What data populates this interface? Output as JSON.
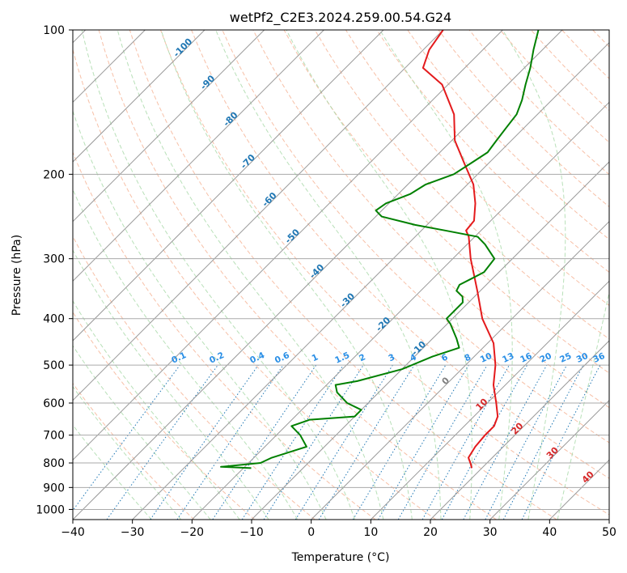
{
  "chart_data": {
    "type": "line",
    "subtype": "skew-t log-p",
    "title": "wetPf2_C2E3.2024.259.00.54.G24",
    "xlabel": "Temperature (°C)",
    "ylabel": "Pressure (hPa)",
    "xlim": [
      -40,
      50
    ],
    "ylim": [
      1050,
      100
    ],
    "yscale": "log",
    "x_ticks": [
      -40,
      -30,
      -20,
      -10,
      0,
      10,
      20,
      30,
      40,
      50
    ],
    "y_ticks": [
      100,
      200,
      300,
      400,
      500,
      600,
      700,
      800,
      900,
      1000
    ],
    "grid": true,
    "series": [
      {
        "color": "#e41a1c",
        "points": [
          {
            "p": 820,
            "t": 18.3
          },
          {
            "p": 805,
            "t": 17.5
          },
          {
            "p": 780,
            "t": 16.0
          },
          {
            "p": 740,
            "t": 15.3
          },
          {
            "p": 700,
            "t": 15.0
          },
          {
            "p": 670,
            "t": 15.0
          },
          {
            "p": 640,
            "t": 14.0
          },
          {
            "p": 600,
            "t": 11.5
          },
          {
            "p": 550,
            "t": 8.0
          },
          {
            "p": 500,
            "t": 5.0
          },
          {
            "p": 450,
            "t": 1.0
          },
          {
            "p": 400,
            "t": -5.0
          },
          {
            "p": 350,
            "t": -10.5
          },
          {
            "p": 300,
            "t": -17.0
          },
          {
            "p": 270,
            "t": -21.0
          },
          {
            "p": 262,
            "t": -22.5
          },
          {
            "p": 250,
            "t": -22.8
          },
          {
            "p": 230,
            "t": -25.5
          },
          {
            "p": 210,
            "t": -29.0
          },
          {
            "p": 190,
            "t": -34.0
          },
          {
            "p": 170,
            "t": -39.5
          },
          {
            "p": 150,
            "t": -44.0
          },
          {
            "p": 130,
            "t": -51.0
          },
          {
            "p": 120,
            "t": -57.0
          },
          {
            "p": 110,
            "t": -59.0
          },
          {
            "p": 100,
            "t": -60.0
          }
        ]
      },
      {
        "color": "#008000",
        "points": [
          {
            "p": 820,
            "t": -18.7
          },
          {
            "p": 815,
            "t": -24.0
          },
          {
            "p": 800,
            "t": -18.0
          },
          {
            "p": 780,
            "t": -17.0
          },
          {
            "p": 740,
            "t": -13.0
          },
          {
            "p": 700,
            "t": -16.0
          },
          {
            "p": 670,
            "t": -19.0
          },
          {
            "p": 650,
            "t": -17.0
          },
          {
            "p": 640,
            "t": -10.0
          },
          {
            "p": 620,
            "t": -10.0
          },
          {
            "p": 600,
            "t": -13.5
          },
          {
            "p": 570,
            "t": -17.0
          },
          {
            "p": 550,
            "t": -18.5
          },
          {
            "p": 540,
            "t": -15.5
          },
          {
            "p": 510,
            "t": -10.0
          },
          {
            "p": 480,
            "t": -7.0
          },
          {
            "p": 460,
            "t": -4.0
          },
          {
            "p": 440,
            "t": -6.0
          },
          {
            "p": 410,
            "t": -9.5
          },
          {
            "p": 400,
            "t": -11.0
          },
          {
            "p": 390,
            "t": -11.0
          },
          {
            "p": 370,
            "t": -11.0
          },
          {
            "p": 360,
            "t": -12.0
          },
          {
            "p": 350,
            "t": -14.0
          },
          {
            "p": 340,
            "t": -14.5
          },
          {
            "p": 330,
            "t": -13.5
          },
          {
            "p": 320,
            "t": -12.5
          },
          {
            "p": 300,
            "t": -13.0
          },
          {
            "p": 280,
            "t": -17.0
          },
          {
            "p": 270,
            "t": -19.5
          },
          {
            "p": 262,
            "t": -26.0
          },
          {
            "p": 255,
            "t": -32.0
          },
          {
            "p": 245,
            "t": -39.0
          },
          {
            "p": 238,
            "t": -41.0
          },
          {
            "p": 230,
            "t": -40.5
          },
          {
            "p": 220,
            "t": -38.0
          },
          {
            "p": 210,
            "t": -37.0
          },
          {
            "p": 200,
            "t": -34.0
          },
          {
            "p": 190,
            "t": -33.0
          },
          {
            "p": 180,
            "t": -32.0
          },
          {
            "p": 170,
            "t": -32.5
          },
          {
            "p": 160,
            "t": -33.0
          },
          {
            "p": 150,
            "t": -33.5
          },
          {
            "p": 140,
            "t": -35.0
          },
          {
            "p": 130,
            "t": -37.0
          },
          {
            "p": 120,
            "t": -39.0
          },
          {
            "p": 110,
            "t": -41.5
          },
          {
            "p": 100,
            "t": -44.0
          }
        ]
      }
    ],
    "isotherm_labels": [
      {
        "label": "-100",
        "t": -100,
        "p": 110,
        "color": "#1f77b4"
      },
      {
        "label": "-90",
        "t": -90,
        "p": 130,
        "color": "#1f77b4"
      },
      {
        "label": "-80",
        "t": -80,
        "p": 155,
        "color": "#1f77b4"
      },
      {
        "label": "-70",
        "t": -70,
        "p": 190,
        "color": "#1f77b4"
      },
      {
        "label": "-60",
        "t": -60,
        "p": 228,
        "color": "#1f77b4"
      },
      {
        "label": "-50",
        "t": -50,
        "p": 272,
        "color": "#1f77b4"
      },
      {
        "label": "-40",
        "t": -40,
        "p": 322,
        "color": "#1f77b4"
      },
      {
        "label": "-30",
        "t": -30,
        "p": 370,
        "color": "#1f77b4"
      },
      {
        "label": "-20",
        "t": -20,
        "p": 415,
        "color": "#1f77b4"
      },
      {
        "label": "-10",
        "t": -10,
        "p": 466,
        "color": "#1f77b4"
      },
      {
        "label": "0",
        "t": 0,
        "p": 545,
        "color": "#7f7f7f"
      },
      {
        "label": "10",
        "t": 10,
        "p": 610,
        "color": "#d62728"
      },
      {
        "label": "20",
        "t": 20,
        "p": 685,
        "color": "#d62728"
      },
      {
        "label": "30",
        "t": 30,
        "p": 770,
        "color": "#d62728"
      },
      {
        "label": "40",
        "t": 40,
        "p": 865,
        "color": "#d62728"
      }
    ],
    "mixing_ratio_labels": [
      "0.1",
      "0.2",
      "0.4",
      "0.6",
      "1",
      "1.5",
      "2",
      "3",
      "4",
      "6",
      "8",
      "10",
      "13",
      "16",
      "20",
      "25",
      "30",
      "36"
    ]
  }
}
